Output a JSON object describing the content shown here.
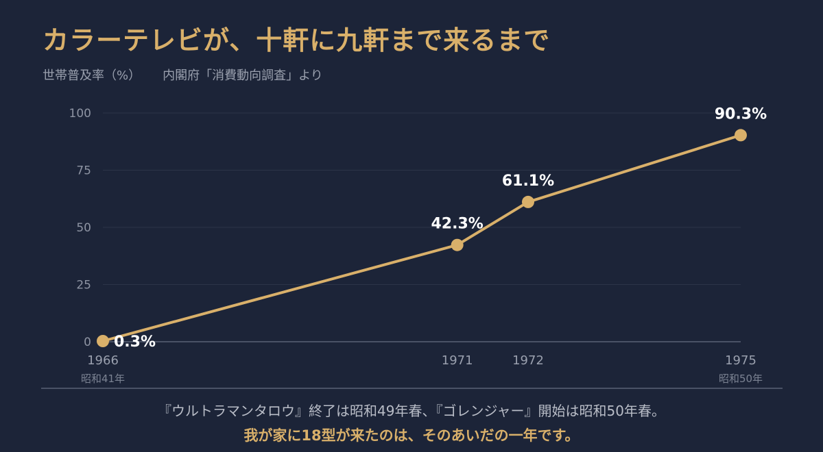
{
  "title": "カラーテレビが、十軒に九軒まで来るまで",
  "subtitle": {
    "measure": "世帯普及率（%）",
    "source": "内閣府「消費動向調査」より"
  },
  "chart_data": {
    "type": "line",
    "x": [
      1966,
      1971,
      1972,
      1975
    ],
    "x_tick_labels": [
      "1966",
      "1971",
      "1972",
      "1975"
    ],
    "x_sub_labels": [
      "昭和41年",
      "",
      "",
      "昭和50年"
    ],
    "y": [
      0.3,
      42.3,
      61.1,
      90.3
    ],
    "data_labels": [
      "0.3%",
      "42.3%",
      "61.1%",
      "90.3%"
    ],
    "xlim": [
      1966,
      1975
    ],
    "ylim": [
      0,
      100
    ],
    "y_ticks": [
      0,
      25,
      50,
      75,
      100
    ],
    "y_tick_labels": [
      "0",
      "25",
      "50",
      "75",
      "100"
    ],
    "grid": true,
    "colors": {
      "line": "#d9b06a",
      "background": "#1c2438",
      "grid": "#2c3548",
      "data_label": "#ffffff"
    }
  },
  "captions": {
    "line1": "『ウルトラマンタロウ』終了は昭和49年春、『ゴレンジャー』開始は昭和50年春。",
    "line2": "我が家に18型が来たのは、そのあいだの一年です。"
  }
}
